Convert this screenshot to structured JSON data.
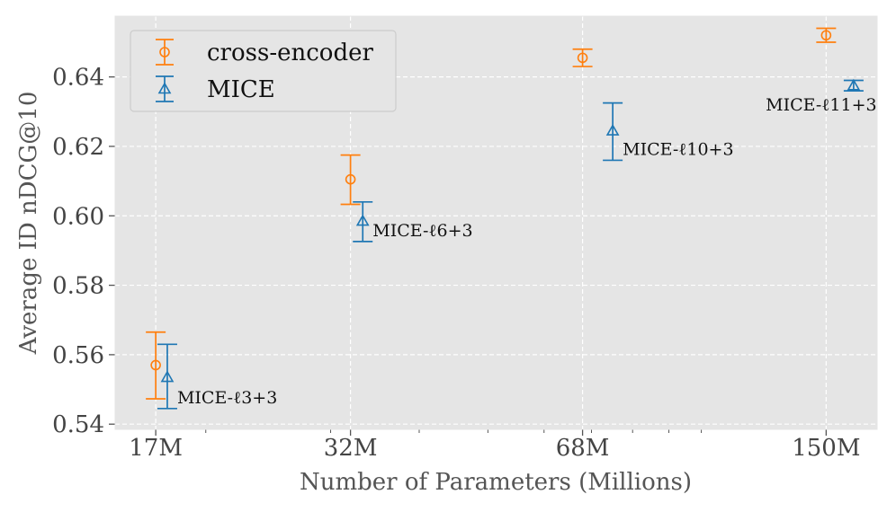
{
  "chart_data": {
    "type": "scatter",
    "title": "",
    "xlabel": "Number of Parameters (Millions)",
    "ylabel": "Average ID nDCG@10",
    "x_scale": "log",
    "xlim": [
      14.9,
      177
    ],
    "ylim": [
      0.5385,
      0.6575
    ],
    "x_ticks": [
      17,
      32,
      68,
      150
    ],
    "x_tick_labels": [
      "17M",
      "32M",
      "68M",
      "150M"
    ],
    "y_ticks": [
      0.54,
      0.56,
      0.58,
      0.6,
      0.62,
      0.64
    ],
    "y_tick_labels": [
      "0.54",
      "0.56",
      "0.58",
      "0.60",
      "0.62",
      "0.64"
    ],
    "grid": true,
    "legend_position": "top-left",
    "series": [
      {
        "name": "cross-encoder",
        "color": "#ff7f0e",
        "marker": "circle",
        "points": [
          {
            "x": 17,
            "y": 0.557,
            "err_low": 0.5473,
            "err_high": 0.5665
          },
          {
            "x": 32,
            "y": 0.6105,
            "err_low": 0.6033,
            "err_high": 0.6175
          },
          {
            "x": 68,
            "y": 0.6455,
            "err_low": 0.643,
            "err_high": 0.648
          },
          {
            "x": 150,
            "y": 0.652,
            "err_low": 0.65,
            "err_high": 0.654
          }
        ]
      },
      {
        "name": "MICE",
        "color": "#1f77b4",
        "marker": "triangle",
        "points": [
          {
            "x": 17.65,
            "y": 0.5535,
            "err_low": 0.5445,
            "err_high": 0.563,
            "label": "MICE-ℓ3+3"
          },
          {
            "x": 33.3,
            "y": 0.5985,
            "err_low": 0.5926,
            "err_high": 0.604,
            "label": "MICE-ℓ6+3"
          },
          {
            "x": 75,
            "y": 0.6245,
            "err_low": 0.616,
            "err_high": 0.6325,
            "label": "MICE-ℓ10+3"
          },
          {
            "x": 164,
            "y": 0.6375,
            "err_low": 0.636,
            "err_high": 0.639,
            "label": "MICE-ℓ11+3"
          }
        ]
      }
    ]
  }
}
